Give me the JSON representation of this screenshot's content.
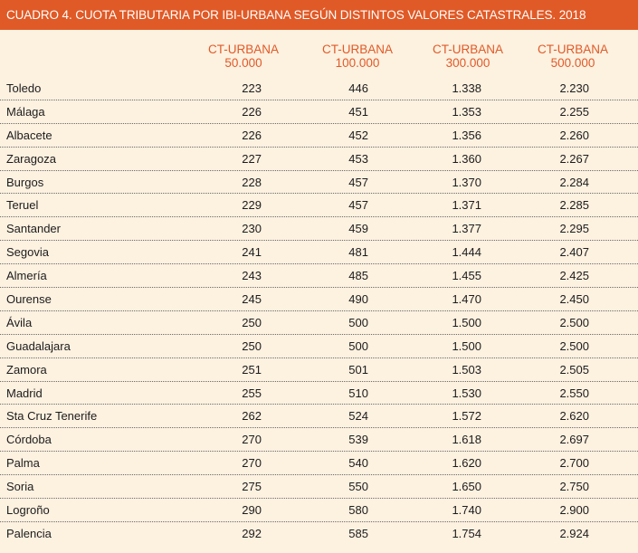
{
  "title": "CUADRO 4. CUOTA TRIBUTARIA POR IBI-URBANA SEGÚN DISTINTOS VALORES CATASTRALES. 2018",
  "columns": [
    {
      "line1": "CT-URBANA",
      "line2": "50.000"
    },
    {
      "line1": "CT-URBANA",
      "line2": "100.000"
    },
    {
      "line1": "CT-URBANA",
      "line2": "300.000"
    },
    {
      "line1": "CT-URBANA",
      "line2": "500.000"
    }
  ],
  "rows": [
    {
      "city": "Toledo",
      "v": [
        "223",
        "446",
        "1.338",
        "2.230"
      ]
    },
    {
      "city": "Málaga",
      "v": [
        "226",
        "451",
        "1.353",
        "2.255"
      ]
    },
    {
      "city": "Albacete",
      "v": [
        "226",
        "452",
        "1.356",
        "2.260"
      ]
    },
    {
      "city": "Zaragoza",
      "v": [
        "227",
        "453",
        "1.360",
        "2.267"
      ]
    },
    {
      "city": "Burgos",
      "v": [
        "228",
        "457",
        "1.370",
        "2.284"
      ]
    },
    {
      "city": "Teruel",
      "v": [
        "229",
        "457",
        "1.371",
        "2.285"
      ]
    },
    {
      "city": "Santander",
      "v": [
        "230",
        "459",
        "1.377",
        "2.295"
      ]
    },
    {
      "city": "Segovia",
      "v": [
        "241",
        "481",
        "1.444",
        "2.407"
      ]
    },
    {
      "city": "Almería",
      "v": [
        "243",
        "485",
        "1.455",
        "2.425"
      ]
    },
    {
      "city": "Ourense",
      "v": [
        "245",
        "490",
        "1.470",
        "2.450"
      ]
    },
    {
      "city": "Ávila",
      "v": [
        "250",
        "500",
        "1.500",
        "2.500"
      ]
    },
    {
      "city": "Guadalajara",
      "v": [
        "250",
        "500",
        "1.500",
        "2.500"
      ]
    },
    {
      "city": "Zamora",
      "v": [
        "251",
        "501",
        "1.503",
        "2.505"
      ]
    },
    {
      "city": "Madrid",
      "v": [
        "255",
        "510",
        "1.530",
        "2.550"
      ]
    },
    {
      "city": "Sta Cruz Tenerife",
      "v": [
        "262",
        "524",
        "1.572",
        "2.620"
      ]
    },
    {
      "city": "Córdoba",
      "v": [
        "270",
        "539",
        "1.618",
        "2.697"
      ]
    },
    {
      "city": "Palma",
      "v": [
        "270",
        "540",
        "1.620",
        "2.700"
      ]
    },
    {
      "city": "Soria",
      "v": [
        "275",
        "550",
        "1.650",
        "2.750"
      ]
    },
    {
      "city": "Logroño",
      "v": [
        "290",
        "580",
        "1.740",
        "2.900"
      ]
    },
    {
      "city": "Palencia",
      "v": [
        "292",
        "585",
        "1.754",
        "2.924"
      ]
    }
  ]
}
